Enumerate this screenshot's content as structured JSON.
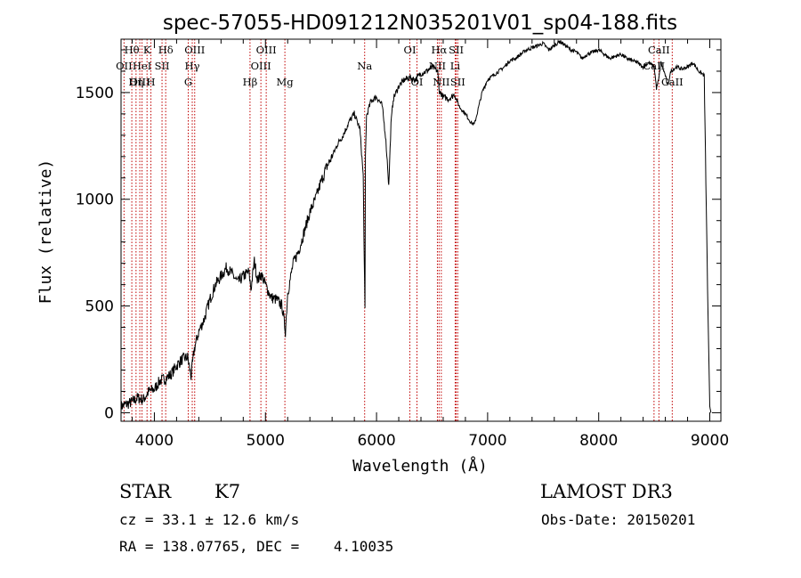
{
  "chart_data": {
    "type": "line",
    "title": "spec-57055-HD091212N035201V01_sp04-188.fits",
    "xlabel": "Wavelength (Å)",
    "ylabel": "Flux (relative)",
    "xlim": [
      3700,
      9100
    ],
    "ylim": [
      -40,
      1750
    ],
    "xticks": [
      4000,
      5000,
      6000,
      7000,
      8000,
      9000
    ],
    "yticks": [
      0,
      500,
      1000,
      1500
    ],
    "series": [
      {
        "name": "spectrum",
        "x": [
          3700,
          3750,
          3800,
          3850,
          3900,
          3950,
          4000,
          4050,
          4100,
          4150,
          4200,
          4250,
          4300,
          4330,
          4360,
          4400,
          4450,
          4500,
          4550,
          4600,
          4650,
          4700,
          4750,
          4800,
          4850,
          4870,
          4900,
          4930,
          4960,
          5000,
          5050,
          5100,
          5150,
          5180,
          5200,
          5250,
          5300,
          5350,
          5400,
          5450,
          5500,
          5550,
          5600,
          5650,
          5700,
          5750,
          5800,
          5850,
          5880,
          5890,
          5896,
          5900,
          5910,
          5950,
          6000,
          6050,
          6080,
          6100,
          6110,
          6130,
          6150,
          6200,
          6250,
          6300,
          6350,
          6400,
          6450,
          6500,
          6550,
          6563,
          6600,
          6650,
          6700,
          6750,
          6800,
          6850,
          6880,
          6900,
          6950,
          7000,
          7050,
          7100,
          7150,
          7200,
          7250,
          7300,
          7350,
          7400,
          7450,
          7500,
          7550,
          7600,
          7650,
          7700,
          7750,
          7800,
          7850,
          7900,
          7950,
          8000,
          8050,
          8100,
          8150,
          8200,
          8250,
          8300,
          8350,
          8400,
          8450,
          8500,
          8520,
          8540,
          8560,
          8600,
          8620,
          8650,
          8700,
          8750,
          8800,
          8850,
          8900,
          8950,
          8980,
          9000,
          9010
        ],
        "y": [
          30,
          40,
          50,
          70,
          60,
          100,
          110,
          150,
          160,
          180,
          220,
          250,
          260,
          170,
          300,
          380,
          440,
          530,
          600,
          640,
          680,
          650,
          610,
          640,
          660,
          580,
          710,
          620,
          650,
          600,
          540,
          530,
          500,
          380,
          560,
          700,
          760,
          850,
          940,
          1000,
          1080,
          1150,
          1200,
          1260,
          1300,
          1360,
          1400,
          1330,
          1110,
          700,
          480,
          1200,
          1390,
          1460,
          1480,
          1440,
          1300,
          1150,
          1060,
          1350,
          1470,
          1530,
          1560,
          1570,
          1560,
          1590,
          1600,
          1620,
          1600,
          1510,
          1480,
          1470,
          1490,
          1430,
          1400,
          1360,
          1350,
          1390,
          1500,
          1560,
          1580,
          1600,
          1620,
          1650,
          1660,
          1680,
          1700,
          1710,
          1720,
          1730,
          1700,
          1720,
          1740,
          1720,
          1700,
          1690,
          1660,
          1680,
          1690,
          1700,
          1680,
          1660,
          1670,
          1680,
          1660,
          1650,
          1640,
          1620,
          1640,
          1620,
          1520,
          1560,
          1640,
          1580,
          1530,
          1600,
          1620,
          1610,
          1620,
          1640,
          1600,
          1580,
          580,
          30,
          0
        ]
      }
    ],
    "lines": [
      {
        "label": "Hθ",
        "wavelength": 3797,
        "row": 1
      },
      {
        "label": "OII",
        "wavelength": 3727,
        "row": 2
      },
      {
        "label": "OIII",
        "wavelength": 3869,
        "row": 3
      },
      {
        "label": "K",
        "wavelength": 3934,
        "row": 1
      },
      {
        "label": "H",
        "wavelength": 3969,
        "row": 3
      },
      {
        "label": "Hη",
        "wavelength": 3835,
        "row": 3
      },
      {
        "label": "HeI",
        "wavelength": 3889,
        "row": 2
      },
      {
        "label": "SII",
        "wavelength": 4069,
        "row": 2
      },
      {
        "label": "Hδ",
        "wavelength": 4102,
        "row": 1
      },
      {
        "label": "OIII",
        "wavelength": 4363,
        "row": 1
      },
      {
        "label": "Hγ",
        "wavelength": 4341,
        "row": 2
      },
      {
        "label": "G",
        "wavelength": 4305,
        "row": 3
      },
      {
        "label": "Hβ",
        "wavelength": 4861,
        "row": 3
      },
      {
        "label": "OIII",
        "wavelength": 5007,
        "row": 1
      },
      {
        "label": "OIII",
        "wavelength": 4959,
        "row": 2
      },
      {
        "label": "Mg",
        "wavelength": 5175,
        "row": 3
      },
      {
        "label": "Na",
        "wavelength": 5893,
        "row": 2
      },
      {
        "label": "OI",
        "wavelength": 6300,
        "row": 1
      },
      {
        "label": "OI",
        "wavelength": 6364,
        "row": 3
      },
      {
        "label": "Hα",
        "wavelength": 6563,
        "row": 1
      },
      {
        "label": "NII",
        "wavelength": 6548,
        "row": 2
      },
      {
        "label": "NII",
        "wavelength": 6583,
        "row": 3
      },
      {
        "label": "SII",
        "wavelength": 6717,
        "row": 1
      },
      {
        "label": "Li",
        "wavelength": 6708,
        "row": 2
      },
      {
        "label": "SII",
        "wavelength": 6731,
        "row": 3
      },
      {
        "label": "CaII",
        "wavelength": 8542,
        "row": 1
      },
      {
        "label": "CaII",
        "wavelength": 8498,
        "row": 2
      },
      {
        "label": "CaII",
        "wavelength": 8662,
        "row": 3
      }
    ]
  },
  "info": {
    "object_type": "STAR",
    "subclass": "K7",
    "survey": "LAMOST DR3",
    "redshift": "cz = 33.1 ± 12.6 km/s",
    "obs_date": "Obs-Date: 20150201",
    "coords": "RA = 138.07765, DEC =    4.10035"
  },
  "colors": {
    "axis": "#000000",
    "spectrum": "#000000",
    "line_marker": "#c00000"
  }
}
